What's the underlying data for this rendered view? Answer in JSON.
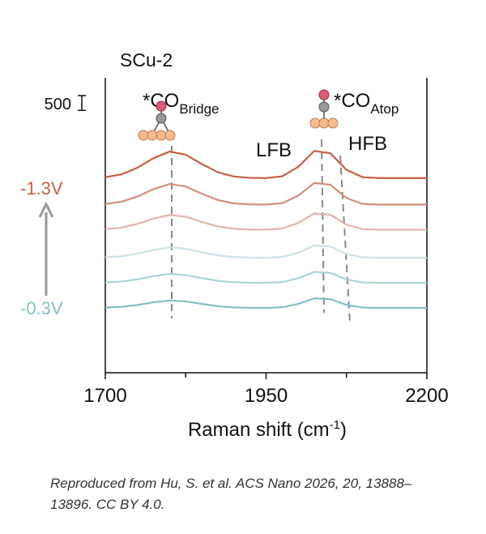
{
  "chart_data": {
    "type": "line",
    "title": "SCu-2",
    "xlabel": {
      "text": "Raman shift (cm",
      "sup": "-1",
      "end": ")"
    },
    "x": [
      1700,
      1725,
      1750,
      1775,
      1800,
      1825,
      1850,
      1875,
      1900,
      1925,
      1950,
      1975,
      2000,
      2025,
      2050,
      2075,
      2100,
      2125,
      2150,
      2175,
      2200
    ],
    "xlim": [
      1700,
      2200
    ],
    "xticks": [
      1700,
      1950,
      2200
    ],
    "xminorticks": [
      1825,
      2075
    ],
    "ylim": [
      0,
      10000
    ],
    "scale_bar": 500,
    "series": [
      {
        "color": "#c8603f",
        "values": [
          6630,
          6726,
          6951,
          7275,
          7500,
          7392,
          7077,
          6798,
          6654,
          6609,
          6600,
          6660,
          6980,
          7520,
          7440,
          6880,
          6630,
          6600,
          6600,
          6600,
          6600
        ]
      },
      {
        "color": "#d38f7c",
        "values": [
          5721,
          5798,
          5973,
          6225,
          6400,
          6316,
          6071,
          5854,
          5742,
          5707,
          5700,
          5748,
          6004,
          6436,
          6372,
          5924,
          5724,
          5700,
          5700,
          5700,
          5700
        ]
      },
      {
        "color": "#e2b4ab",
        "values": [
          4865,
          4920,
          5045,
          5225,
          5350,
          5290,
          5115,
          4960,
          4880,
          4855,
          4850,
          4886,
          5078,
          5402,
          5354,
          5018,
          4868,
          4850,
          4850,
          4850,
          4850
        ]
      },
      {
        "color": "#cde3e8",
        "values": [
          3911,
          3949,
          4037,
          4163,
          4250,
          4208,
          4086,
          3977,
          3921,
          3904,
          3900,
          3927,
          4071,
          4314,
          4278,
          4026,
          3914,
          3900,
          3900,
          3900,
          3900
        ]
      },
      {
        "color": "#a9d4d9",
        "values": [
          3059,
          3092,
          3167,
          3275,
          3350,
          3314,
          3209,
          3116,
          3068,
          3053,
          3050,
          3074,
          3202,
          3418,
          3386,
          3162,
          3062,
          3050,
          3050,
          3050,
          3050
        ]
      },
      {
        "color": "#82c1c6",
        "values": [
          2208,
          2235,
          2298,
          2388,
          2450,
          2420,
          2333,
          2255,
          2215,
          2203,
          2200,
          2221,
          2333,
          2522,
          2494,
          2298,
          2211,
          2200,
          2200,
          2200,
          2200
        ]
      }
    ],
    "potential_labels": {
      "top": "-1.3V",
      "bottom": "-0.3V"
    },
    "annotations": [
      {
        "text": "*CO",
        "sub": "Bridge"
      },
      {
        "text": "*CO",
        "sub": "Atop"
      },
      {
        "text": "LFB"
      },
      {
        "text": "HFB"
      }
    ],
    "caption": "Reproduced from Hu, S. et al. ACS Nano 2026, 20, 13888–13896. CC BY 4.0."
  }
}
